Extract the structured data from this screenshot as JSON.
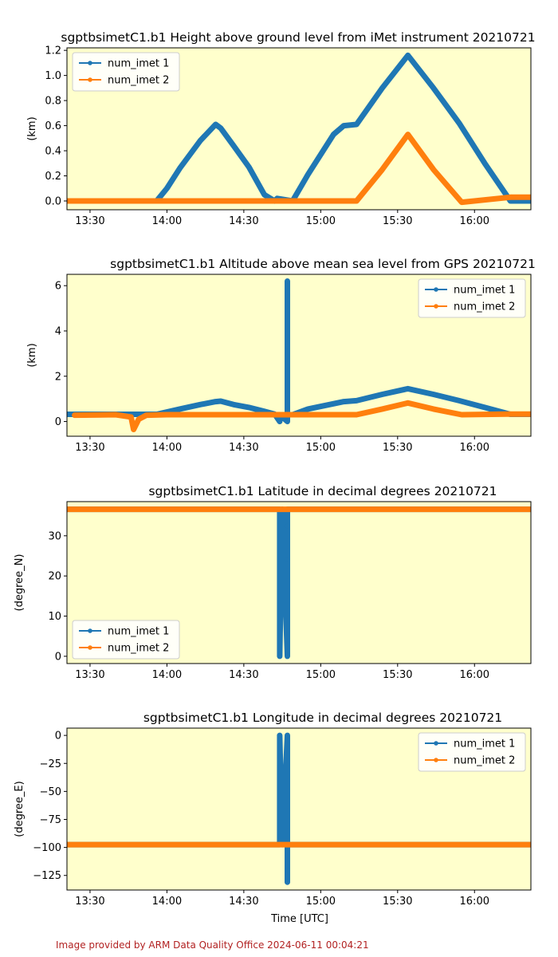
{
  "footer": {
    "credit": "Image provided by ARM Data Quality Office 2024-06-11 00:04:21"
  },
  "style": {
    "plot_background": "#ffffcc",
    "series_colors": [
      "#1f77b4",
      "#ff7f0e"
    ]
  },
  "chart_data": [
    {
      "type": "line",
      "title": "sgptbsimetC1.b1 Height above ground level from iMet instrument 20210721",
      "xlabel": "",
      "ylabel": "(km)",
      "xlim": [
        "13:21",
        "16:22"
      ],
      "ylim": [
        -0.07,
        1.22
      ],
      "xticks": [
        "13:30",
        "14:00",
        "14:30",
        "15:00",
        "15:30",
        "16:00"
      ],
      "yticks": [
        0.0,
        0.2,
        0.4,
        0.6,
        0.8,
        1.0,
        1.2
      ],
      "ytick_labels": [
        "0.0",
        "0.2",
        "0.4",
        "0.6",
        "0.8",
        "1.0",
        "1.2"
      ],
      "legend": "upper left",
      "series": [
        {
          "name": "num_imet 1",
          "x": [
            "13:26",
            "13:56",
            "14:00",
            "14:05",
            "14:13",
            "14:19",
            "14:21",
            "14:26",
            "14:32",
            "14:38",
            "14:42",
            "14:43",
            "14:49",
            "14:55",
            "15:05",
            "15:09",
            "15:14",
            "15:24",
            "15:34",
            "15:44",
            "15:54",
            "16:04",
            "16:14",
            "16:18",
            "16:22"
          ],
          "y": [
            0.0,
            0.0,
            0.1,
            0.26,
            0.48,
            0.61,
            0.58,
            0.44,
            0.27,
            0.05,
            0.0,
            0.02,
            0.0,
            0.21,
            0.53,
            0.6,
            0.61,
            0.9,
            1.16,
            0.9,
            0.62,
            0.3,
            0.0,
            0.0,
            0.0
          ]
        },
        {
          "name": "num_imet 2",
          "x": [
            "13:21",
            "13:50",
            "14:30",
            "15:14",
            "15:24",
            "15:34",
            "15:44",
            "15:55",
            "16:14",
            "16:22"
          ],
          "y": [
            0.0,
            0.0,
            0.0,
            0.0,
            0.25,
            0.53,
            0.25,
            -0.01,
            0.03,
            0.03
          ]
        }
      ]
    },
    {
      "type": "line",
      "title": "sgptbsimetC1.b1 Altitude above mean sea level from GPS 20210721",
      "xlabel": "",
      "ylabel": "(km)",
      "xlim": [
        "13:21",
        "16:22"
      ],
      "ylim": [
        -0.65,
        6.5
      ],
      "xticks": [
        "13:30",
        "14:00",
        "14:30",
        "15:00",
        "15:30",
        "16:00"
      ],
      "yticks": [
        0,
        2,
        4,
        6
      ],
      "ytick_labels": [
        "0",
        "2",
        "4",
        "6"
      ],
      "legend": "upper right",
      "series": [
        {
          "name": "num_imet 1",
          "x": [
            "13:21",
            "13:56",
            "14:05",
            "14:13",
            "14:19",
            "14:21",
            "14:26",
            "14:32",
            "14:38",
            "14:42",
            "14:44",
            "14:44",
            "14:47",
            "14:47",
            "14:47",
            "14:49",
            "14:55",
            "15:09",
            "15:14",
            "15:24",
            "15:34",
            "15:44",
            "15:54",
            "16:04",
            "16:14",
            "16:22"
          ],
          "y": [
            0.32,
            0.32,
            0.55,
            0.75,
            0.88,
            0.9,
            0.75,
            0.62,
            0.45,
            0.33,
            0.0,
            0.3,
            0.0,
            6.2,
            0.3,
            0.3,
            0.55,
            0.88,
            0.92,
            1.2,
            1.45,
            1.2,
            0.92,
            0.62,
            0.32,
            0.32
          ]
        },
        {
          "name": "num_imet 2",
          "x": [
            "13:24",
            "13:40",
            "13:46",
            "13:47",
            "13:49",
            "13:52",
            "14:00",
            "14:30",
            "14:43",
            "15:14",
            "15:24",
            "15:34",
            "15:44",
            "15:55",
            "16:14",
            "16:22"
          ],
          "y": [
            0.28,
            0.3,
            0.2,
            -0.35,
            0.1,
            0.28,
            0.3,
            0.3,
            0.3,
            0.3,
            0.55,
            0.82,
            0.55,
            0.3,
            0.33,
            0.33
          ]
        }
      ]
    },
    {
      "type": "line",
      "title": "sgptbsimetC1.b1 Latitude in decimal degrees 20210721",
      "xlabel": "",
      "ylabel": "(degree_N)",
      "xlim": [
        "13:21",
        "16:22"
      ],
      "ylim": [
        -1.8,
        38.5
      ],
      "xticks": [
        "13:30",
        "14:00",
        "14:30",
        "15:00",
        "15:30",
        "16:00"
      ],
      "yticks": [
        0,
        10,
        20,
        30
      ],
      "ytick_labels": [
        "0",
        "10",
        "20",
        "30"
      ],
      "legend": "lower left",
      "series": [
        {
          "name": "num_imet 1",
          "x": [
            "13:21",
            "14:44",
            "14:44",
            "14:45",
            "14:47",
            "14:47",
            "14:47",
            "14:47",
            "16:22"
          ],
          "y": [
            36.6,
            36.6,
            0,
            36.6,
            0,
            32.5,
            24,
            36.6,
            36.6
          ]
        },
        {
          "name": "num_imet 2",
          "x": [
            "13:21",
            "15:55",
            "16:14",
            "16:22"
          ],
          "y": [
            36.6,
            36.6,
            36.6,
            36.6
          ]
        }
      ]
    },
    {
      "type": "line",
      "title": "sgptbsimetC1.b1 Longitude in decimal degrees 20210721",
      "xlabel": "Time [UTC]",
      "ylabel": "(degree_E)",
      "xlim": [
        "13:21",
        "16:22"
      ],
      "ylim": [
        -138,
        6.5
      ],
      "xticks": [
        "13:30",
        "14:00",
        "14:30",
        "15:00",
        "15:30",
        "16:00"
      ],
      "yticks": [
        0,
        -25,
        -50,
        -75,
        -100,
        -125
      ],
      "ytick_labels": [
        "0",
        "−25",
        "−50",
        "−75",
        "−100",
        "−125"
      ],
      "legend": "upper right",
      "series": [
        {
          "name": "num_imet 1",
          "x": [
            "13:21",
            "14:44",
            "14:44",
            "14:45",
            "14:47",
            "14:47",
            "14:47",
            "14:47",
            "16:22"
          ],
          "y": [
            -97.5,
            -97.5,
            0,
            -97.5,
            0,
            -131,
            -120,
            -97.5,
            -97.5
          ]
        },
        {
          "name": "num_imet 2",
          "x": [
            "13:21",
            "15:55",
            "16:14",
            "16:22"
          ],
          "y": [
            -97.5,
            -97.5,
            -97.5,
            -97.5
          ]
        }
      ]
    }
  ]
}
